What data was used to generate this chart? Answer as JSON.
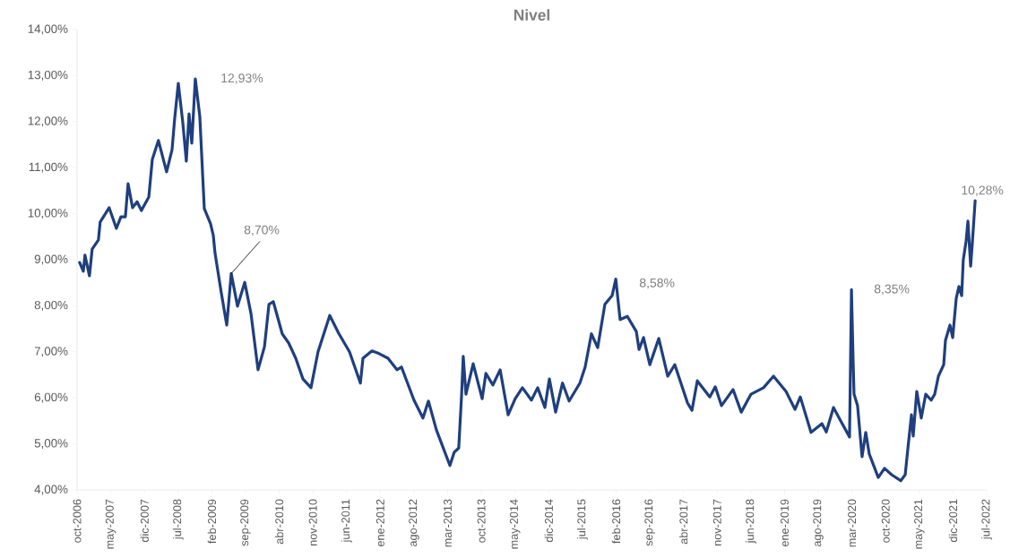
{
  "chart_data": {
    "type": "line",
    "title": "Nivel",
    "color": "#1f3f7e",
    "x": [
      "2006-10-17",
      "2006-11-10",
      "2006-11-20",
      "2006-12-18",
      "2007-01-05",
      "2007-02-14",
      "2007-02-25",
      "2007-04-21",
      "2007-06-06",
      "2007-07-04",
      "2007-08-02",
      "2007-08-19",
      "2007-09-17",
      "2007-10-15",
      "2007-11-12",
      "2007-12-28",
      "2008-01-20",
      "2008-02-28",
      "2008-04-19",
      "2008-05-23",
      "2008-06-09",
      "2008-07-02",
      "2008-07-30",
      "2008-08-22",
      "2008-09-09",
      "2008-09-26",
      "2008-10-18",
      "2008-11-16",
      "2008-12-14",
      "2009-01-23",
      "2009-02-10",
      "2009-02-21",
      "2009-03-30",
      "2009-05-04",
      "2009-06-02",
      "2009-07-11",
      "2009-08-26",
      "2009-10-05",
      "2009-11-19",
      "2009-12-29",
      "2010-01-27",
      "2010-02-24",
      "2010-04-20",
      "2010-05-30",
      "2010-07-14",
      "2010-08-29",
      "2010-10-19",
      "2010-12-03",
      "2011-02-16",
      "2011-04-12",
      "2011-06-19",
      "2011-08-27",
      "2011-09-13",
      "2011-11-09",
      "2011-12-24",
      "2012-02-19",
      "2012-04-15",
      "2012-05-13",
      "2012-08-01",
      "2012-09-27",
      "2012-11-01",
      "2012-12-21",
      "2013-03-15",
      "2013-04-12",
      "2013-05-10",
      "2013-05-28",
      "2013-06-08",
      "2013-06-25",
      "2013-08-10",
      "2013-10-06",
      "2013-10-29",
      "2013-12-13",
      "2014-01-28",
      "2014-03-18",
      "2014-05-02",
      "2014-06-17",
      "2014-08-13",
      "2014-09-22",
      "2014-11-07",
      "2014-12-05",
      "2015-01-14",
      "2015-02-27",
      "2015-04-08",
      "2015-06-15",
      "2015-07-18",
      "2015-08-27",
      "2015-10-06",
      "2015-11-21",
      "2016-01-06",
      "2016-01-29",
      "2016-02-26",
      "2016-04-11",
      "2016-06-07",
      "2016-06-24",
      "2016-07-22",
      "2016-08-31",
      "2016-10-27",
      "2016-12-23",
      "2017-02-07",
      "2017-04-26",
      "2017-05-24",
      "2017-06-27",
      "2017-09-15",
      "2017-10-19",
      "2017-11-28",
      "2018-02-10",
      "2018-03-31",
      "2018-06-02",
      "2018-08-20",
      "2018-10-22",
      "2019-01-10",
      "2019-03-06",
      "2019-04-09",
      "2019-06-16",
      "2019-08-24",
      "2019-09-21",
      "2019-11-06",
      "2019-12-21",
      "2020-02-16",
      "2020-02-28",
      "2020-03-08",
      "2020-03-14",
      "2020-04-06",
      "2020-05-04",
      "2020-05-27",
      "2020-06-19",
      "2020-08-15",
      "2020-09-24",
      "2020-11-08",
      "2021-01-05",
      "2021-02-03",
      "2021-02-20",
      "2021-03-12",
      "2021-03-23",
      "2021-04-15",
      "2021-05-13",
      "2021-06-11",
      "2021-07-15",
      "2021-08-07",
      "2021-08-30",
      "2021-10-03",
      "2021-10-14",
      "2021-11-12",
      "2021-11-29",
      "2021-12-21",
      "2022-01-08",
      "2022-01-25",
      "2022-02-05",
      "2022-02-22",
      "2022-03-04",
      "2022-03-21",
      "2022-04-02",
      "2022-04-19"
    ],
    "values": [
      8.94,
      8.75,
      9.1,
      8.65,
      9.23,
      9.43,
      9.82,
      10.13,
      9.68,
      9.93,
      9.93,
      10.65,
      10.13,
      10.26,
      10.07,
      10.36,
      11.18,
      11.59,
      10.91,
      11.39,
      12.05,
      12.83,
      11.98,
      11.14,
      12.17,
      11.53,
      12.93,
      12.11,
      10.11,
      9.78,
      9.53,
      9.14,
      8.28,
      7.58,
      8.7,
      7.99,
      8.51,
      7.83,
      6.61,
      7.11,
      8.03,
      8.09,
      7.39,
      7.19,
      6.86,
      6.41,
      6.22,
      7.0,
      7.79,
      7.4,
      7.0,
      6.32,
      6.86,
      7.02,
      6.96,
      6.86,
      6.61,
      6.67,
      5.95,
      5.56,
      5.93,
      5.3,
      4.53,
      4.82,
      4.91,
      6.08,
      6.9,
      6.08,
      6.74,
      5.98,
      6.53,
      6.28,
      6.61,
      5.63,
      5.98,
      6.22,
      5.95,
      6.22,
      5.79,
      6.41,
      5.69,
      6.32,
      5.93,
      6.32,
      6.67,
      7.39,
      7.09,
      8.03,
      8.22,
      8.58,
      7.7,
      7.77,
      7.44,
      7.05,
      7.31,
      6.72,
      7.29,
      6.47,
      6.72,
      5.89,
      5.73,
      6.37,
      6.02,
      6.24,
      5.83,
      6.18,
      5.69,
      6.08,
      6.22,
      6.47,
      6.14,
      5.75,
      6.02,
      5.25,
      5.44,
      5.26,
      5.79,
      5.5,
      5.15,
      8.35,
      6.86,
      6.08,
      5.83,
      4.72,
      5.25,
      4.78,
      4.27,
      4.47,
      4.33,
      4.2,
      4.33,
      4.91,
      5.63,
      5.17,
      6.14,
      5.56,
      6.08,
      5.95,
      6.08,
      6.47,
      6.72,
      7.25,
      7.58,
      7.31,
      8.16,
      8.42,
      8.22,
      9.0,
      9.39,
      9.84,
      8.86,
      9.39,
      10.28
    ],
    "xlim": [
      "2006-10",
      "2022-07"
    ],
    "xticks": [
      {
        "value": "2006-10",
        "label": "oct-2006"
      },
      {
        "value": "2007-05",
        "label": "may-2007"
      },
      {
        "value": "2007-12",
        "label": "dic-2007"
      },
      {
        "value": "2008-07",
        "label": "jul-2008"
      },
      {
        "value": "2009-02",
        "label": "feb-2009"
      },
      {
        "value": "2009-09",
        "label": "sep-2009"
      },
      {
        "value": "2010-04",
        "label": "abr-2010"
      },
      {
        "value": "2010-11",
        "label": "nov-2010"
      },
      {
        "value": "2011-06",
        "label": "jun-2011"
      },
      {
        "value": "2012-01",
        "label": "ene-2012"
      },
      {
        "value": "2012-08",
        "label": "ago-2012"
      },
      {
        "value": "2013-03",
        "label": "mar-2013"
      },
      {
        "value": "2013-10",
        "label": "oct-2013"
      },
      {
        "value": "2014-05",
        "label": "may-2014"
      },
      {
        "value": "2014-12",
        "label": "dic-2014"
      },
      {
        "value": "2015-07",
        "label": "jul-2015"
      },
      {
        "value": "2016-02",
        "label": "feb-2016"
      },
      {
        "value": "2016-09",
        "label": "sep-2016"
      },
      {
        "value": "2017-04",
        "label": "abr-2017"
      },
      {
        "value": "2017-11",
        "label": "nov-2017"
      },
      {
        "value": "2018-06",
        "label": "jun-2018"
      },
      {
        "value": "2019-01",
        "label": "ene-2019"
      },
      {
        "value": "2019-08",
        "label": "ago-2019"
      },
      {
        "value": "2020-03",
        "label": "mar-2020"
      },
      {
        "value": "2020-10",
        "label": "oct-2020"
      },
      {
        "value": "2021-05",
        "label": "may-2021"
      },
      {
        "value": "2021-12",
        "label": "dic-2021"
      },
      {
        "value": "2022-07",
        "label": "jul-2022"
      }
    ],
    "ylim": [
      4,
      14
    ],
    "yticks": [
      {
        "value": 4,
        "label": "4,00%"
      },
      {
        "value": 5,
        "label": "5,00%"
      },
      {
        "value": 6,
        "label": "6,00%"
      },
      {
        "value": 7,
        "label": "7,00%"
      },
      {
        "value": 8,
        "label": "8,00%"
      },
      {
        "value": 9,
        "label": "9,00%"
      },
      {
        "value": 10,
        "label": "10,00%"
      },
      {
        "value": 11,
        "label": "11,00%"
      },
      {
        "value": 12,
        "label": "12,00%"
      },
      {
        "value": 13,
        "label": "13,00%"
      },
      {
        "value": 14,
        "label": "14,00%"
      }
    ],
    "annotations": [
      {
        "text": "12,93%",
        "x": "2008-10-18",
        "y": 12.93
      },
      {
        "text": "8,70%",
        "x": "2009-06-02",
        "y": 8.7
      },
      {
        "text": "8,58%",
        "x": "2016-01-29",
        "y": 8.58
      },
      {
        "text": "8,35%",
        "x": "2020-02-28",
        "y": 8.35
      },
      {
        "text": "10,28%",
        "x": "2022-04-19",
        "y": 10.28
      }
    ]
  }
}
